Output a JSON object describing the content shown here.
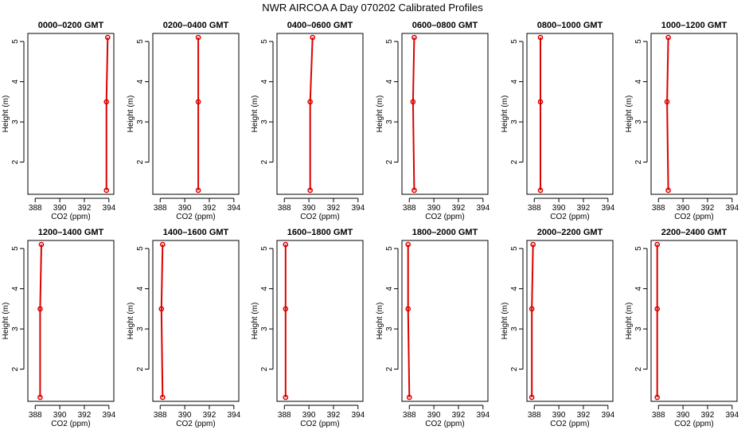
{
  "title": "NWR AIRCOA A  Day 070202  Calibrated Profiles",
  "colors": {
    "profile": "#dd0000",
    "axis": "#000000"
  },
  "chart_data": {
    "type": "line",
    "panel_count": 12,
    "xlabel": "CO2 (ppm)",
    "ylabel": "Height (m)",
    "xlim": [
      387.4,
      394.4
    ],
    "ylim": [
      1.2,
      5.2
    ],
    "xticks": [
      388,
      390,
      392,
      394
    ],
    "yticks": [
      2,
      3,
      4,
      5
    ],
    "heights": [
      1.3,
      3.5,
      5.1
    ],
    "panels": [
      {
        "title": "0000–0200 GMT",
        "x": [
          393.8,
          393.8,
          393.9
        ]
      },
      {
        "title": "0200–0400 GMT",
        "x": [
          391.1,
          391.1,
          391.1
        ]
      },
      {
        "title": "0400–0600 GMT",
        "x": [
          390.1,
          390.1,
          390.3
        ]
      },
      {
        "title": "0600–0800 GMT",
        "x": [
          388.4,
          388.3,
          388.4
        ]
      },
      {
        "title": "0800–1000 GMT",
        "x": [
          388.5,
          388.5,
          388.5
        ]
      },
      {
        "title": "1000–1200 GMT",
        "x": [
          388.8,
          388.7,
          388.8
        ]
      },
      {
        "title": "1200–1400 GMT",
        "x": [
          388.4,
          388.4,
          388.5
        ]
      },
      {
        "title": "1400–1600 GMT",
        "x": [
          388.2,
          388.1,
          388.2
        ]
      },
      {
        "title": "1600–1800 GMT",
        "x": [
          388.1,
          388.1,
          388.1
        ]
      },
      {
        "title": "1800–2000 GMT",
        "x": [
          388.0,
          387.9,
          387.9
        ]
      },
      {
        "title": "2000–2200 GMT",
        "x": [
          387.8,
          387.8,
          387.9
        ]
      },
      {
        "title": "2200–2400 GMT",
        "x": [
          387.9,
          387.9,
          387.9
        ]
      }
    ]
  }
}
